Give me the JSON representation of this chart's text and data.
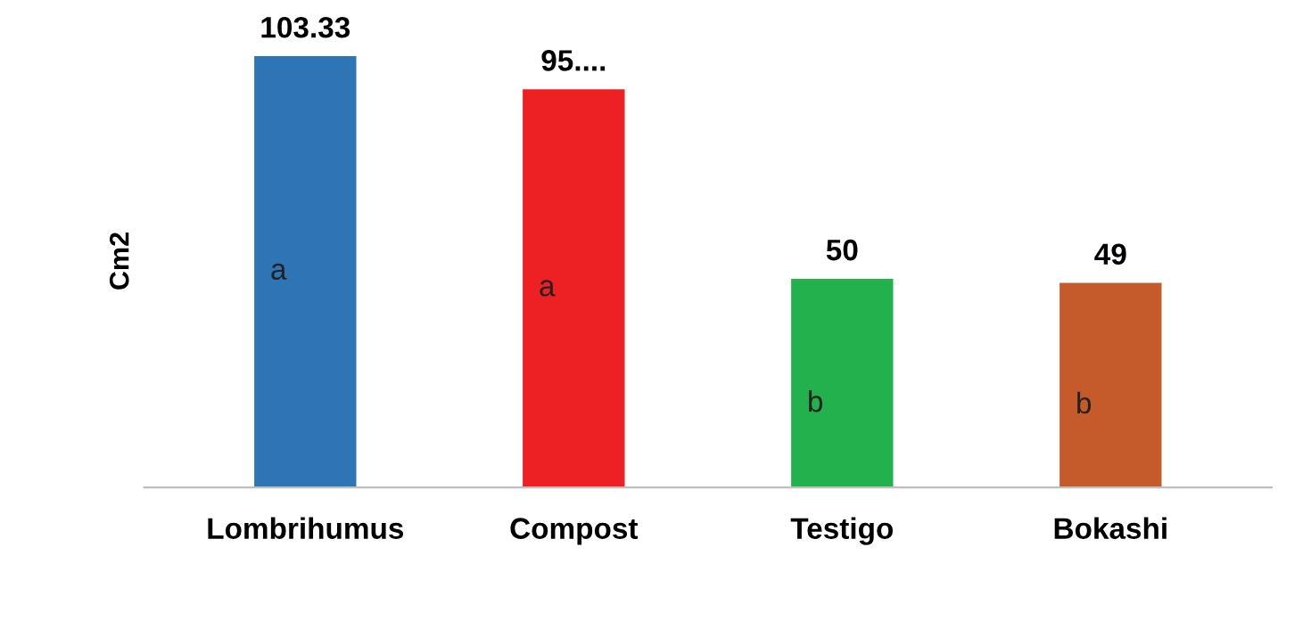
{
  "chart_data": {
    "type": "bar",
    "ylabel": "Cm2",
    "categories": [
      "Lombrihumus",
      "Compost",
      "Testigo",
      "Bokashi"
    ],
    "values": [
      103.33,
      95.4,
      50,
      49
    ],
    "colors": [
      "#2e75b6",
      "#ed2024",
      "#22b14c",
      "#c55a2b"
    ],
    "value_labels": [
      "103.33",
      "95....",
      "50",
      "49"
    ],
    "tick_labels": "x",
    "grid": false,
    "legend": false,
    "annotations": [
      "a",
      "a",
      "b",
      "b"
    ]
  }
}
